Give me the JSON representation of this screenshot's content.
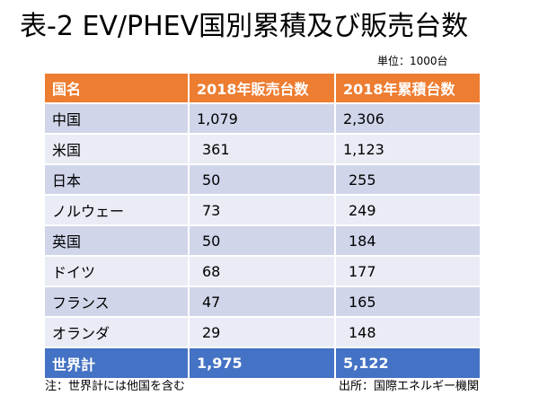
{
  "title": "表-2 EV/PHEV国別累積及び販売台数",
  "unit": "単位：1000台",
  "table": {
    "headers": [
      "国名",
      "2018年販売台数",
      "2018年累積台数"
    ],
    "rows": [
      {
        "country": "中国",
        "sales": "1,079",
        "cumulative": "2,306"
      },
      {
        "country": "米国",
        "sales": "361",
        "cumulative": "1,123"
      },
      {
        "country": "日本",
        "sales": "50",
        "cumulative": "255"
      },
      {
        "country": "ノルウェー",
        "sales": "73",
        "cumulative": "249"
      },
      {
        "country": "英国",
        "sales": "50",
        "cumulative": "184"
      },
      {
        "country": "ドイツ",
        "sales": "68",
        "cumulative": "177"
      },
      {
        "country": "フランス",
        "sales": "47",
        "cumulative": "165"
      },
      {
        "country": "オランダ",
        "sales": "29",
        "cumulative": "148"
      }
    ],
    "total": {
      "country": "世界計",
      "sales": "1,975",
      "cumulative": "5,122"
    }
  },
  "note": "注：世界計には他国を含む",
  "source": "出所：国際エネルギー機関",
  "colors": {
    "header": "#ed7d31",
    "row_odd": "#d0d5ea",
    "row_even": "#e9ebf5",
    "total": "#4472c4"
  }
}
